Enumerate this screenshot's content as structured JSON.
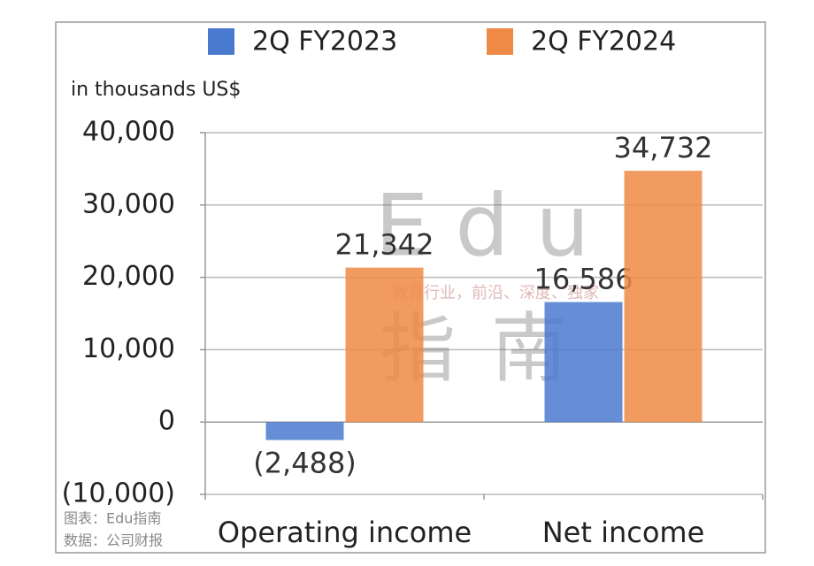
{
  "chart_data": {
    "type": "bar",
    "y_label": "in thousands US$",
    "categories": [
      "Operating income",
      "Net income"
    ],
    "series": [
      {
        "name": "2Q FY2023",
        "color": "#4a7ad0",
        "values": [
          -2488,
          16586
        ],
        "value_labels": [
          "(2,488)",
          "16,586"
        ]
      },
      {
        "name": "2Q FY2024",
        "color": "#ee8a45",
        "values": [
          21342,
          34732
        ],
        "value_labels": [
          "21,342",
          "34,732"
        ]
      }
    ],
    "ylim": [
      -10000,
      40000
    ],
    "yticks": [
      {
        "value": 40000,
        "label": "40,000"
      },
      {
        "value": 30000,
        "label": "30,000"
      },
      {
        "value": 20000,
        "label": "20,000"
      },
      {
        "value": 10000,
        "label": "10,000"
      },
      0,
      {
        "value": -10000,
        "label": "(10,000)"
      }
    ],
    "grid": true,
    "legend": "top",
    "watermark": {
      "title": "Edu",
      "subtitle": "教育行业，前沿、深度、独家",
      "mark": "指南"
    },
    "notes": [
      "图表：Edu指南",
      "数据：公司财报"
    ]
  }
}
